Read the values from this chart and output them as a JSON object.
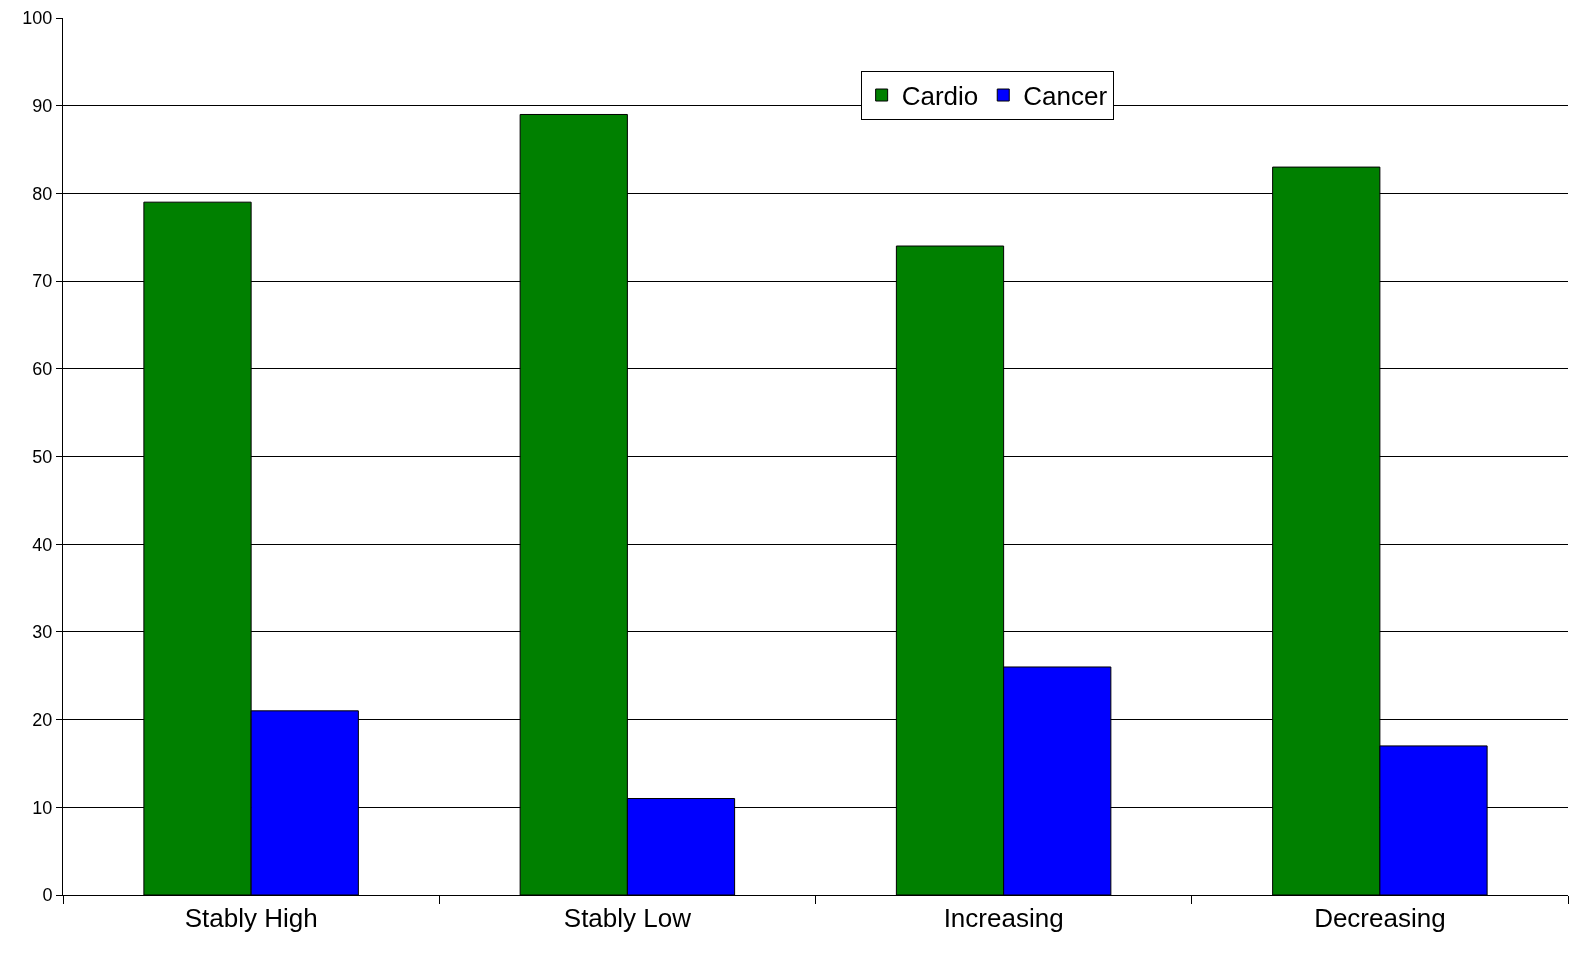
{
  "chart_data": {
    "type": "bar",
    "categories": [
      "Stably High",
      "Stably Low",
      "Increasing",
      "Decreasing"
    ],
    "series": [
      {
        "name": "Cardio",
        "color": "#008000",
        "values": [
          79,
          89,
          74,
          83
        ]
      },
      {
        "name": "Cancer",
        "color": "#0000ff",
        "values": [
          21,
          11,
          26,
          17
        ]
      }
    ],
    "ylim": [
      0,
      100
    ],
    "yticks": [
      0,
      10,
      20,
      30,
      40,
      50,
      60,
      70,
      80,
      90,
      100
    ],
    "grid": "y",
    "legend": "top right"
  }
}
